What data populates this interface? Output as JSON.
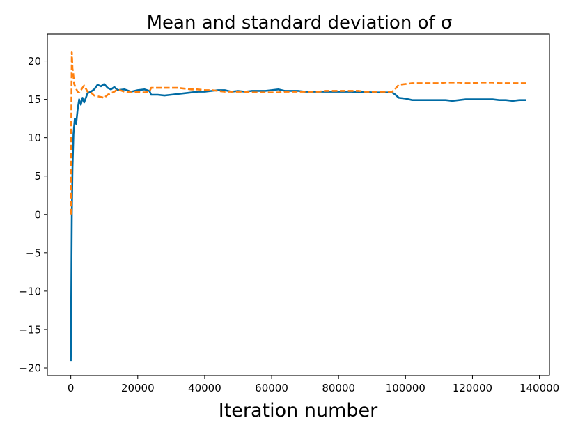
{
  "chart_data": {
    "type": "line",
    "title": "Mean and standard deviation of σ",
    "xlabel": "Iteration number",
    "ylabel": "",
    "xlim": [
      -7000,
      143000
    ],
    "ylim": [
      -21.0,
      23.5
    ],
    "xticks": [
      0,
      20000,
      40000,
      60000,
      80000,
      100000,
      120000,
      140000
    ],
    "xtick_labels": [
      "0",
      "20000",
      "40000",
      "60000",
      "80000",
      "100000",
      "120000",
      "140000"
    ],
    "yticks": [
      -20,
      -15,
      -10,
      -5,
      0,
      5,
      10,
      15,
      20
    ],
    "ytick_labels": [
      "−20",
      "−15",
      "−10",
      "−5",
      "0",
      "5",
      "10",
      "15",
      "20"
    ],
    "grid": false,
    "legend": "none",
    "series": [
      {
        "name": "mean",
        "color": "#006BA4",
        "style": "solid",
        "points": [
          [
            0,
            -19.1
          ],
          [
            150,
            -10
          ],
          [
            300,
            0
          ],
          [
            500,
            6
          ],
          [
            800,
            10.5
          ],
          [
            1200,
            12.5
          ],
          [
            1600,
            11.8
          ],
          [
            2000,
            13.5
          ],
          [
            2500,
            15.0
          ],
          [
            3000,
            14.3
          ],
          [
            3500,
            15.2
          ],
          [
            4000,
            14.6
          ],
          [
            5000,
            15.8
          ],
          [
            6000,
            16.0
          ],
          [
            7000,
            16.3
          ],
          [
            8000,
            16.9
          ],
          [
            9000,
            16.7
          ],
          [
            10000,
            17.0
          ],
          [
            11000,
            16.5
          ],
          [
            12000,
            16.3
          ],
          [
            13000,
            16.6
          ],
          [
            14000,
            16.2
          ],
          [
            16000,
            16.3
          ],
          [
            18000,
            16.0
          ],
          [
            20000,
            16.2
          ],
          [
            22000,
            16.3
          ],
          [
            23500,
            16.1
          ],
          [
            24000,
            15.6
          ],
          [
            26000,
            15.6
          ],
          [
            28000,
            15.5
          ],
          [
            30000,
            15.6
          ],
          [
            32000,
            15.7
          ],
          [
            34000,
            15.8
          ],
          [
            36000,
            15.9
          ],
          [
            38000,
            16.0
          ],
          [
            40000,
            16.0
          ],
          [
            42000,
            16.1
          ],
          [
            44000,
            16.2
          ],
          [
            46000,
            16.2
          ],
          [
            48000,
            16.0
          ],
          [
            50000,
            16.1
          ],
          [
            52000,
            16.0
          ],
          [
            54000,
            16.1
          ],
          [
            56000,
            16.1
          ],
          [
            58000,
            16.1
          ],
          [
            60000,
            16.2
          ],
          [
            62000,
            16.3
          ],
          [
            64000,
            16.1
          ],
          [
            66000,
            16.1
          ],
          [
            68000,
            16.1
          ],
          [
            70000,
            16.0
          ],
          [
            72000,
            16.0
          ],
          [
            74000,
            16.0
          ],
          [
            76000,
            16.0
          ],
          [
            78000,
            16.0
          ],
          [
            80000,
            16.0
          ],
          [
            82000,
            16.0
          ],
          [
            84000,
            16.0
          ],
          [
            86000,
            15.9
          ],
          [
            88000,
            16.0
          ],
          [
            90000,
            15.9
          ],
          [
            92000,
            15.9
          ],
          [
            94000,
            15.9
          ],
          [
            96000,
            15.9
          ],
          [
            97000,
            15.6
          ],
          [
            98000,
            15.2
          ],
          [
            100000,
            15.1
          ],
          [
            102000,
            14.9
          ],
          [
            104000,
            14.9
          ],
          [
            106000,
            14.9
          ],
          [
            108000,
            14.9
          ],
          [
            110000,
            14.9
          ],
          [
            112000,
            14.9
          ],
          [
            114000,
            14.8
          ],
          [
            116000,
            14.9
          ],
          [
            118000,
            15.0
          ],
          [
            120000,
            15.0
          ],
          [
            122000,
            15.0
          ],
          [
            124000,
            15.0
          ],
          [
            126000,
            15.0
          ],
          [
            128000,
            14.9
          ],
          [
            130000,
            14.9
          ],
          [
            132000,
            14.8
          ],
          [
            134000,
            14.9
          ],
          [
            136000,
            14.9
          ]
        ]
      },
      {
        "name": "standard deviation",
        "color": "#FF800E",
        "style": "dashed",
        "points": [
          [
            0,
            0.0
          ],
          [
            150,
            12
          ],
          [
            300,
            21.2
          ],
          [
            500,
            19.0
          ],
          [
            700,
            18.5
          ],
          [
            1000,
            17.0
          ],
          [
            1500,
            16.5
          ],
          [
            2000,
            16.0
          ],
          [
            2500,
            15.9
          ],
          [
            3000,
            16.2
          ],
          [
            4000,
            16.8
          ],
          [
            5000,
            16.0
          ],
          [
            6000,
            15.9
          ],
          [
            7000,
            15.5
          ],
          [
            8000,
            15.4
          ],
          [
            9000,
            15.3
          ],
          [
            10000,
            15.2
          ],
          [
            11000,
            15.6
          ],
          [
            12000,
            15.8
          ],
          [
            13000,
            16.0
          ],
          [
            14000,
            16.3
          ],
          [
            16000,
            16.0
          ],
          [
            18000,
            15.9
          ],
          [
            20000,
            16.0
          ],
          [
            22000,
            15.9
          ],
          [
            23500,
            16.0
          ],
          [
            24000,
            16.5
          ],
          [
            26000,
            16.5
          ],
          [
            28000,
            16.5
          ],
          [
            30000,
            16.5
          ],
          [
            32000,
            16.5
          ],
          [
            34000,
            16.4
          ],
          [
            36000,
            16.3
          ],
          [
            38000,
            16.3
          ],
          [
            40000,
            16.2
          ],
          [
            42000,
            16.2
          ],
          [
            44000,
            16.1
          ],
          [
            46000,
            16.0
          ],
          [
            48000,
            16.0
          ],
          [
            50000,
            16.0
          ],
          [
            52000,
            16.0
          ],
          [
            54000,
            15.9
          ],
          [
            56000,
            15.9
          ],
          [
            58000,
            15.9
          ],
          [
            60000,
            15.9
          ],
          [
            62000,
            15.9
          ],
          [
            64000,
            16.0
          ],
          [
            66000,
            16.0
          ],
          [
            68000,
            16.0
          ],
          [
            70000,
            16.0
          ],
          [
            72000,
            16.0
          ],
          [
            74000,
            16.0
          ],
          [
            76000,
            16.1
          ],
          [
            78000,
            16.1
          ],
          [
            80000,
            16.1
          ],
          [
            82000,
            16.1
          ],
          [
            84000,
            16.1
          ],
          [
            86000,
            16.1
          ],
          [
            88000,
            16.0
          ],
          [
            90000,
            16.0
          ],
          [
            92000,
            16.0
          ],
          [
            94000,
            16.0
          ],
          [
            96000,
            16.0
          ],
          [
            97000,
            16.4
          ],
          [
            98000,
            16.9
          ],
          [
            100000,
            17.0
          ],
          [
            102000,
            17.1
          ],
          [
            104000,
            17.1
          ],
          [
            106000,
            17.1
          ],
          [
            108000,
            17.1
          ],
          [
            110000,
            17.1
          ],
          [
            112000,
            17.2
          ],
          [
            114000,
            17.2
          ],
          [
            116000,
            17.2
          ],
          [
            118000,
            17.1
          ],
          [
            120000,
            17.1
          ],
          [
            122000,
            17.2
          ],
          [
            124000,
            17.2
          ],
          [
            126000,
            17.2
          ],
          [
            128000,
            17.1
          ],
          [
            130000,
            17.1
          ],
          [
            132000,
            17.1
          ],
          [
            134000,
            17.1
          ],
          [
            136000,
            17.1
          ]
        ]
      }
    ]
  }
}
